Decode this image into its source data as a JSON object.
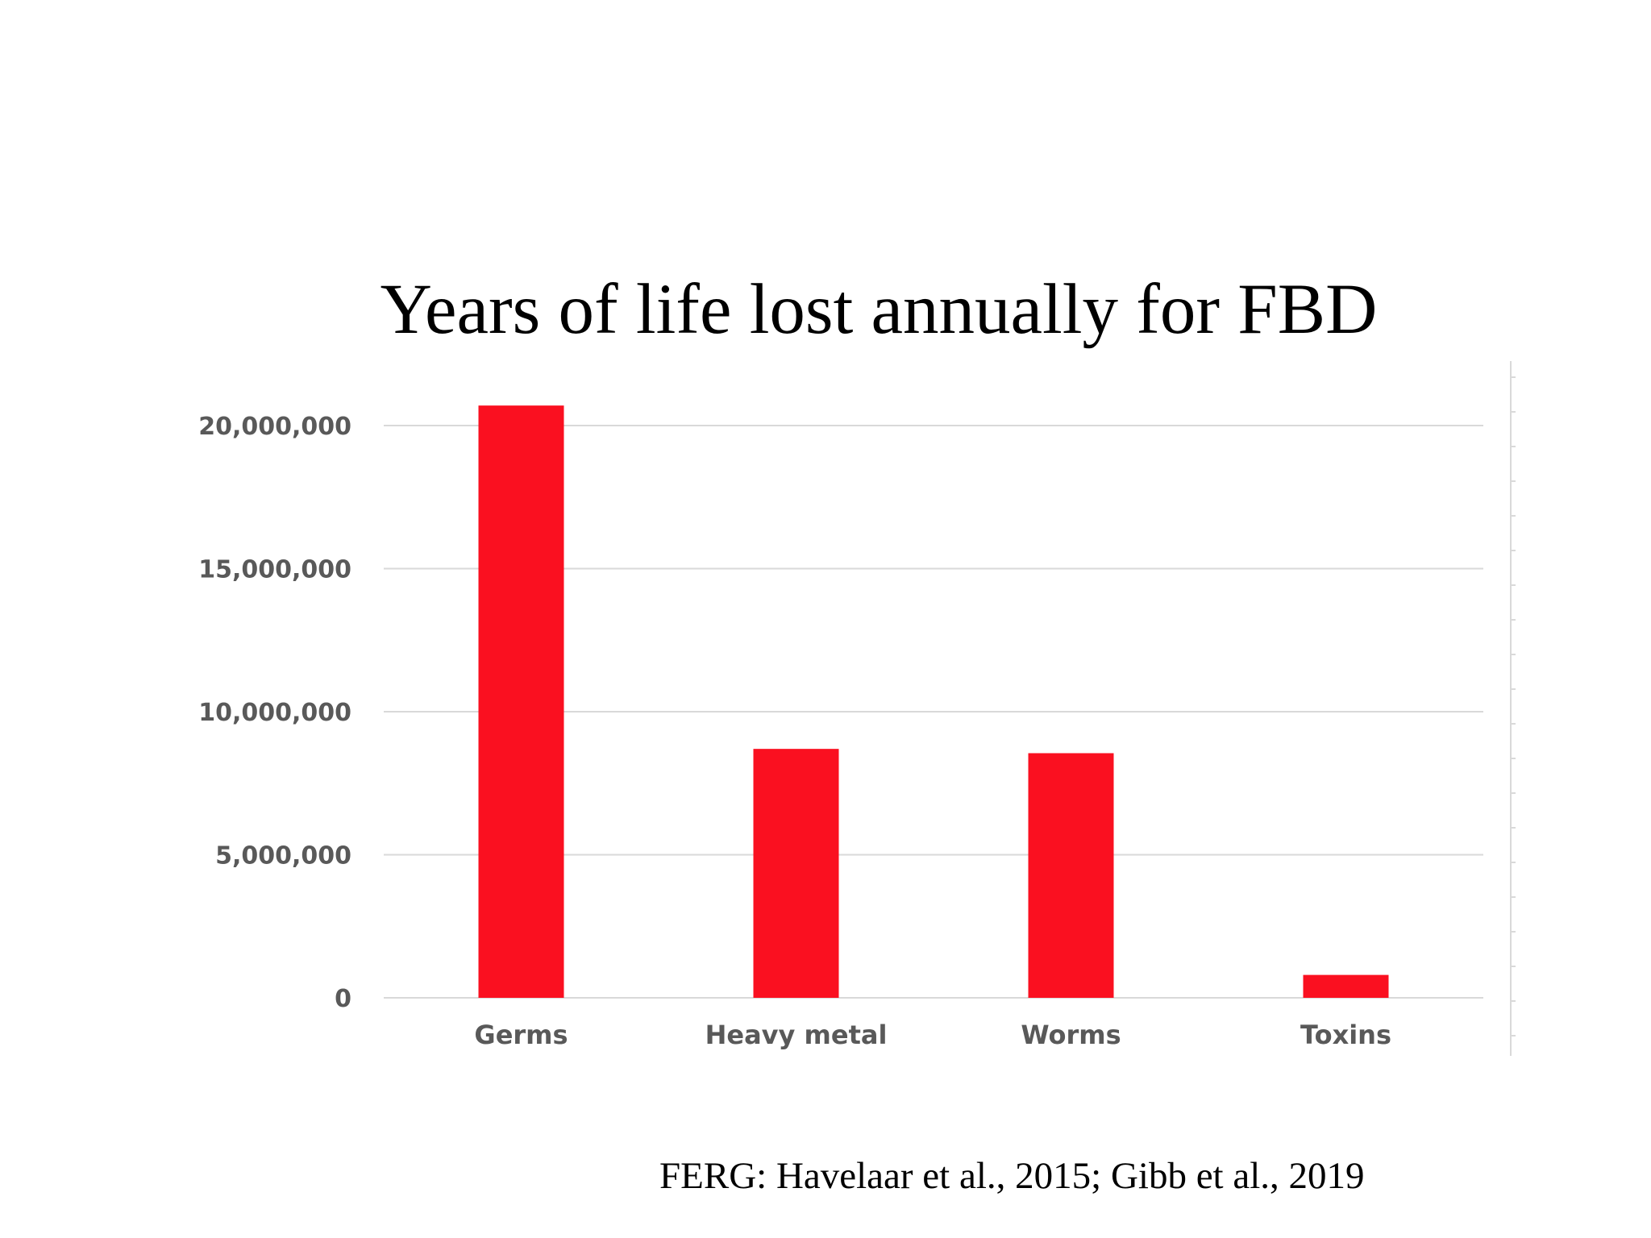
{
  "chart_data": {
    "type": "bar",
    "title": "Years of life lost annually for FBD",
    "categories": [
      "Germs",
      "Heavy metal",
      "Worms",
      "Toxins"
    ],
    "values": [
      20700000,
      8700000,
      8550000,
      800000
    ],
    "ylim": [
      0,
      22000000
    ],
    "yticks": [
      0,
      5000000,
      10000000,
      15000000,
      20000000
    ],
    "ytick_labels": [
      "0",
      "5,000,000",
      "10,000,000",
      "15,000,000",
      "20,000,000"
    ],
    "xlabel": "",
    "ylabel": "",
    "grid": true,
    "legend": "none",
    "bar_color": "#fa1020",
    "grid_color": "#d9d9d9"
  },
  "source": "FERG: Havelaar et al., 2015; Gibb et al., 2019"
}
